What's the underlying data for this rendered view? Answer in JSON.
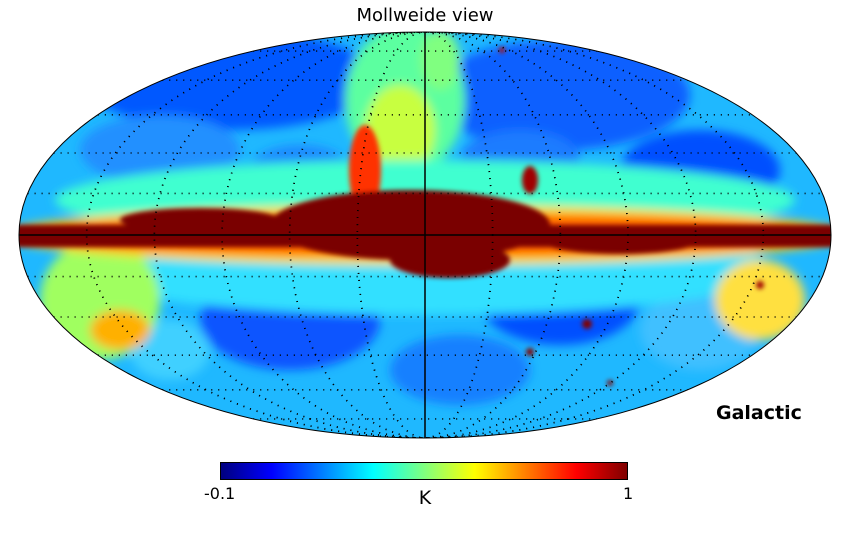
{
  "title": "Mollweide view",
  "coordinate_system": "Galactic",
  "projection": "Mollweide",
  "graticule": true,
  "colorbar": {
    "min_label": "-0.1",
    "max_label": "1",
    "unit": "K",
    "min": -0.1,
    "max": 1,
    "colormap": "jet",
    "colors": [
      "#00007f",
      "#0000ff",
      "#007fff",
      "#00ffff",
      "#7fff7f",
      "#ffff00",
      "#ff7f00",
      "#ff0000",
      "#7f0000"
    ]
  }
}
